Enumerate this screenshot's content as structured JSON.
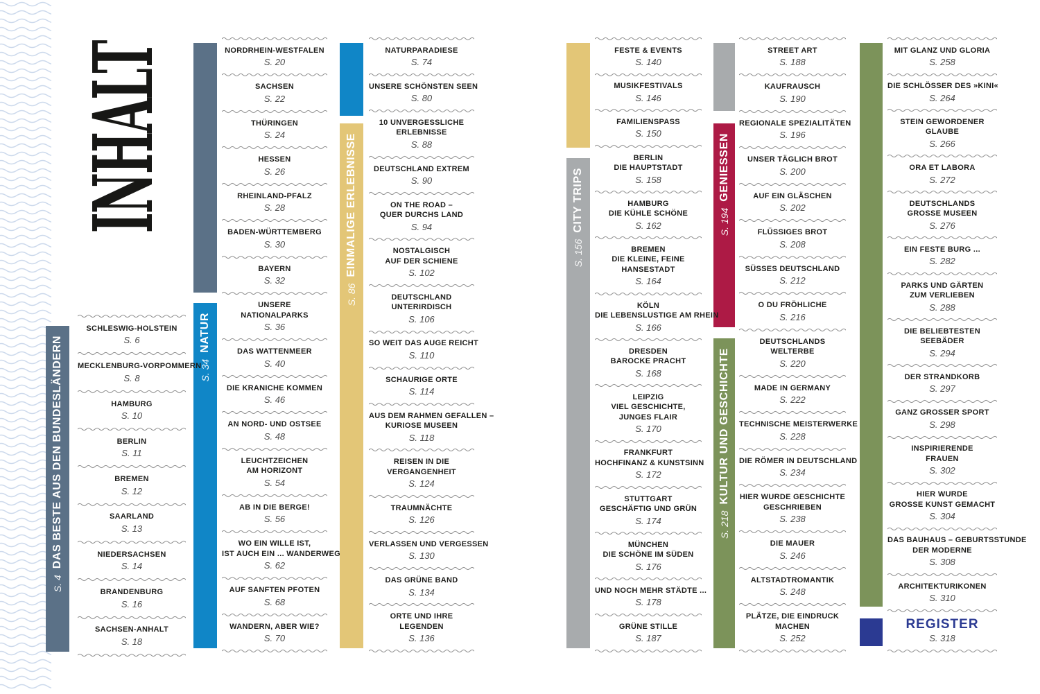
{
  "page": {
    "title": "INHALT"
  },
  "colors": {
    "bundeslaender": "#5b7187",
    "natur": "#1086c7",
    "erlebnisse": "#e3c677",
    "citytrips": "#a8abad",
    "geniessen": "#ad1a45",
    "kultur": "#7c935a",
    "register": "#2b3a92",
    "edge_wave": "#ccd9ec",
    "separator": "#8f8f8f"
  },
  "sections": [
    {
      "id": "bundeslaender",
      "page_label": "S. 4",
      "label": "DAS BESTE AUS DEN BUNDESLÄNDERN"
    },
    {
      "id": "natur",
      "page_label": "S. 34",
      "label": "NATUR"
    },
    {
      "id": "erlebnisse",
      "page_label": "S. 86",
      "label": "EINMALIGE ERLEBNISSE"
    },
    {
      "id": "citytrips",
      "page_label": "S. 156",
      "label": "CITY TRIPS"
    },
    {
      "id": "geniessen",
      "page_label": "S. 194",
      "label": "GENIESSEN"
    },
    {
      "id": "kultur",
      "page_label": "S. 218",
      "label": "KULTUR UND GESCHICHTE"
    }
  ],
  "columns": [
    {
      "entries": [
        {
          "title": "SCHLESWIG-HOLSTEIN",
          "page": "S. 6"
        },
        {
          "title": "MECKLENBURG-VORPOMMERN",
          "page": "S. 8"
        },
        {
          "title": "HAMBURG",
          "page": "S. 10"
        },
        {
          "title": "BERLIN",
          "page": "S. 11"
        },
        {
          "title": "BREMEN",
          "page": "S. 12"
        },
        {
          "title": "SAARLAND",
          "page": "S. 13"
        },
        {
          "title": "NIEDERSACHSEN",
          "page": "S. 14"
        },
        {
          "title": "BRANDENBURG",
          "page": "S. 16"
        },
        {
          "title": "SACHSEN-ANHALT",
          "page": "S. 18"
        }
      ]
    },
    {
      "entries": [
        {
          "title": "NORDRHEIN-WESTFALEN",
          "page": "S. 20"
        },
        {
          "title": "SACHSEN",
          "page": "S. 22"
        },
        {
          "title": "THÜRINGEN",
          "page": "S. 24"
        },
        {
          "title": "HESSEN",
          "page": "S. 26"
        },
        {
          "title": "RHEINLAND-PFALZ",
          "page": "S. 28"
        },
        {
          "title": "BADEN-WÜRTTEMBERG",
          "page": "S. 30"
        },
        {
          "title": "BAYERN",
          "page": "S. 32"
        },
        {
          "title": "UNSERE\nNATIONALPARKS",
          "page": "S. 36"
        },
        {
          "title": "DAS WATTENMEER",
          "page": "S. 40"
        },
        {
          "title": "DIE KRANICHE KOMMEN",
          "page": "S. 46"
        },
        {
          "title": "AN NORD- UND OSTSEE",
          "page": "S. 48"
        },
        {
          "title": "LEUCHTZEICHEN\nAM HORIZONT",
          "page": "S. 54"
        },
        {
          "title": "AB IN DIE BERGE!",
          "page": "S. 56"
        },
        {
          "title": "WO EIN WILLE IST,\nIST AUCH EIN ... WANDERWEG",
          "page": "S. 62"
        },
        {
          "title": "AUF SANFTEN PFOTEN",
          "page": "S. 68"
        },
        {
          "title": "WANDERN, ABER WIE?",
          "page": "S. 70"
        }
      ]
    },
    {
      "entries": [
        {
          "title": "NATURPARADIESE",
          "page": "S. 74"
        },
        {
          "title": "UNSERE SCHÖNSTEN SEEN",
          "page": "S. 80"
        },
        {
          "title": "10 UNVERGESSLICHE\nERLEBNISSE",
          "page": "S. 88"
        },
        {
          "title": "DEUTSCHLAND EXTREM",
          "page": "S. 90"
        },
        {
          "title": "ON THE ROAD –\nQUER DURCHS LAND",
          "page": "S. 94"
        },
        {
          "title": "NOSTALGISCH\nAUF DER SCHIENE",
          "page": "S. 102"
        },
        {
          "title": "DEUTSCHLAND\nUNTERIRDISCH",
          "page": "S. 106"
        },
        {
          "title": "SO WEIT DAS AUGE REICHT",
          "page": "S. 110"
        },
        {
          "title": "SCHAURIGE ORTE",
          "page": "S. 114"
        },
        {
          "title": "AUS DEM RAHMEN GEFALLEN –\nKURIOSE MUSEEN",
          "page": "S. 118"
        },
        {
          "title": "REISEN IN DIE\nVERGANGENHEIT",
          "page": "S. 124"
        },
        {
          "title": "TRAUMNÄCHTE",
          "page": "S. 126"
        },
        {
          "title": "VERLASSEN UND VERGESSEN",
          "page": "S. 130"
        },
        {
          "title": "DAS GRÜNE BAND",
          "page": "S. 134"
        },
        {
          "title": "ORTE UND IHRE\nLEGENDEN",
          "page": "S. 136"
        }
      ]
    },
    {
      "entries": [
        {
          "title": "FESTE & EVENTS",
          "page": "S. 140"
        },
        {
          "title": "MUSIKFESTIVALS",
          "page": "S. 146"
        },
        {
          "title": "FAMILIENSPASS",
          "page": "S. 150"
        },
        {
          "title": "BERLIN\nDIE HAUPTSTADT",
          "page": "S. 158"
        },
        {
          "title": "HAMBURG\nDIE KÜHLE SCHÖNE",
          "page": "S. 162"
        },
        {
          "title": "BREMEN\nDIE KLEINE, FEINE\nHANSESTADT",
          "page": "S. 164"
        },
        {
          "title": "KÖLN\nDIE LEBENSLUSTIGE AM RHEIN",
          "page": "S. 166"
        },
        {
          "title": "DRESDEN\nBAROCKE PRACHT",
          "page": "S. 168"
        },
        {
          "title": "LEIPZIG\nVIEL GESCHICHTE,\nJUNGES FLAIR",
          "page": "S. 170"
        },
        {
          "title": "FRANKFURT\nHOCHFINANZ & KUNSTSINN",
          "page": "S. 172"
        },
        {
          "title": "STUTTGART\nGESCHÄFTIG UND GRÜN",
          "page": "S. 174"
        },
        {
          "title": "MÜNCHEN\nDIE SCHÖNE IM SÜDEN",
          "page": "S. 176"
        },
        {
          "title": "UND NOCH MEHR STÄDTE ...",
          "page": "S. 178"
        },
        {
          "title": "GRÜNE STILLE",
          "page": "S. 187"
        }
      ]
    },
    {
      "entries": [
        {
          "title": "STREET ART",
          "page": "S. 188"
        },
        {
          "title": "KAUFRAUSCH",
          "page": "S. 190"
        },
        {
          "title": "REGIONALE SPEZIALITÄTEN",
          "page": "S. 196"
        },
        {
          "title": "UNSER TÄGLICH BROT",
          "page": "S. 200"
        },
        {
          "title": "AUF EIN GLÄSCHEN",
          "page": "S. 202"
        },
        {
          "title": "FLÜSSIGES BROT",
          "page": "S. 208"
        },
        {
          "title": "SÜSSES DEUTSCHLAND",
          "page": "S. 212"
        },
        {
          "title": "O DU FRÖHLICHE",
          "page": "S. 216"
        },
        {
          "title": "DEUTSCHLANDS\nWELTERBE",
          "page": "S. 220"
        },
        {
          "title": "MADE IN GERMANY",
          "page": "S. 222"
        },
        {
          "title": "TECHNISCHE MEISTERWERKE",
          "page": "S. 228"
        },
        {
          "title": "DIE RÖMER IN DEUTSCHLAND",
          "page": "S. 234"
        },
        {
          "title": "HIER WURDE GESCHICHTE\nGESCHRIEBEN",
          "page": "S. 238"
        },
        {
          "title": "DIE MAUER",
          "page": "S. 246"
        },
        {
          "title": "ALTSTADTROMANTIK",
          "page": "S. 248"
        },
        {
          "title": "PLÄTZE, DIE EINDRUCK\nMACHEN",
          "page": "S. 252"
        }
      ]
    },
    {
      "entries": [
        {
          "title": "MIT GLANZ UND GLORIA",
          "page": "S. 258"
        },
        {
          "title": "DIE SCHLÖSSER DES »KINI«",
          "page": "S. 264"
        },
        {
          "title": "STEIN GEWORDENER\nGLAUBE",
          "page": "S. 266"
        },
        {
          "title": "ORA ET LABORA",
          "page": "S. 272"
        },
        {
          "title": "DEUTSCHLANDS\nGROSSE MUSEEN",
          "page": "S. 276"
        },
        {
          "title": "EIN FESTE BURG ...",
          "page": "S. 282"
        },
        {
          "title": "PARKS UND GÄRTEN\nZUM VERLIEBEN",
          "page": "S. 288"
        },
        {
          "title": "DIE BELIEBTESTEN\nSEEBÄDER",
          "page": "S. 294"
        },
        {
          "title": "DER STRANDKORB",
          "page": "S. 297"
        },
        {
          "title": "GANZ GROSSER SPORT",
          "page": "S. 298"
        },
        {
          "title": "INSPIRIERENDE\nFRAUEN",
          "page": "S. 302"
        },
        {
          "title": "HIER WURDE\nGROSSE KUNST GEMACHT",
          "page": "S. 304"
        },
        {
          "title": "DAS BAUHAUS – GEBURTSSTUNDE\nDER MODERNE",
          "page": "S. 308"
        },
        {
          "title": "ARCHITEKTURIKONEN",
          "page": "S. 310"
        },
        {
          "title": "REGISTER",
          "page": "S. 318",
          "variant": "register"
        }
      ]
    }
  ]
}
